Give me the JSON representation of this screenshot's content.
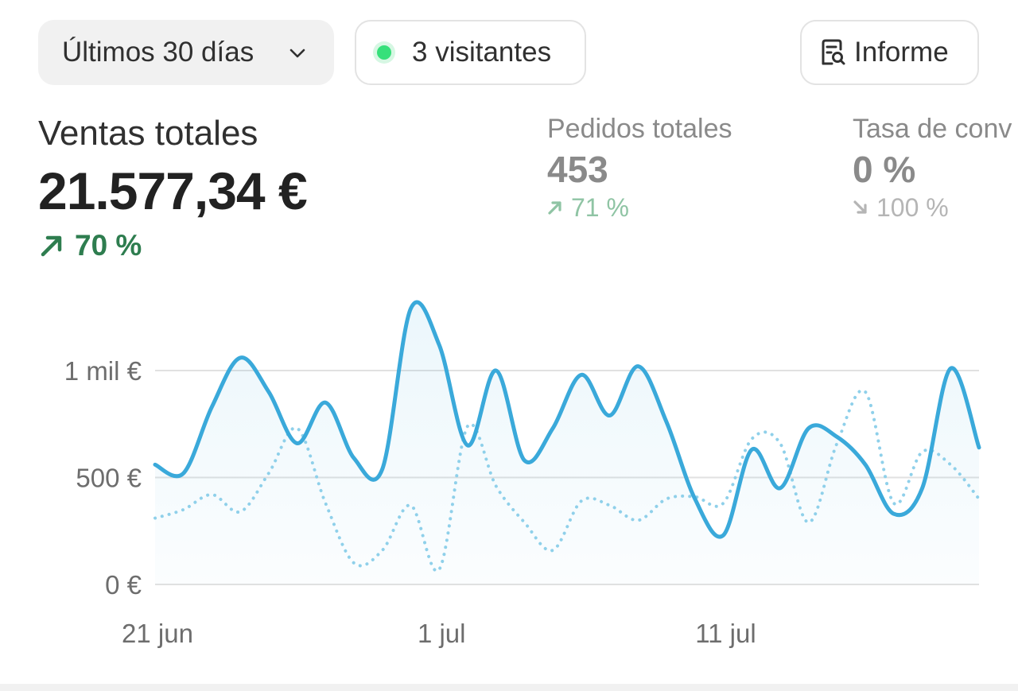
{
  "toolbar": {
    "range_label": "Últimos 30 días",
    "visitors_label": "3 visitantes",
    "report_label": "Informe",
    "live_dot_color": "#36e07a"
  },
  "metrics": {
    "total_sales": {
      "label": "Ventas totales",
      "value": "21.577,34 €",
      "change": "70 %",
      "trend": "up",
      "color": "#2e7d4f"
    },
    "total_orders": {
      "label": "Pedidos totales",
      "value": "453",
      "change": "71 %",
      "trend": "up"
    },
    "conversion_rate": {
      "label": "Tasa de conv",
      "value": "0 %",
      "change": "100 %",
      "trend": "down"
    }
  },
  "chart_data": {
    "type": "line",
    "x_ticks": [
      "21 jun",
      "1 jul",
      "11 jul"
    ],
    "y_ticks": [
      "0 €",
      "500 €",
      "1 mil €"
    ],
    "y_tick_values": [
      0,
      500,
      1000
    ],
    "ylim": [
      0,
      1300
    ],
    "grid": true,
    "legend": "none",
    "colors": {
      "current": "#3aa9da",
      "previous": "#8fd0ea"
    },
    "series": [
      {
        "style": "solid",
        "x": [
          0,
          1,
          2,
          3,
          4,
          5,
          6,
          7,
          8,
          9,
          10,
          11,
          12,
          13,
          14,
          15,
          16,
          17,
          18,
          19,
          20,
          21,
          22,
          23,
          24,
          25,
          26,
          27,
          28,
          29
        ],
        "values": [
          560,
          520,
          830,
          1060,
          900,
          660,
          850,
          590,
          540,
          1290,
          1120,
          650,
          1000,
          580,
          730,
          980,
          790,
          1020,
          760,
          400,
          230,
          630,
          450,
          730,
          690,
          560,
          330,
          450,
          1010,
          640
        ]
      },
      {
        "style": "dotted",
        "x": [
          0,
          1,
          2,
          3,
          4,
          5,
          6,
          7,
          8,
          9,
          10,
          11,
          12,
          13,
          14,
          15,
          16,
          17,
          18,
          19,
          20,
          21,
          22,
          23,
          24,
          25,
          26,
          27,
          28,
          29
        ],
        "values": [
          310,
          350,
          420,
          340,
          520,
          730,
          380,
          100,
          160,
          370,
          70,
          740,
          460,
          290,
          160,
          390,
          370,
          300,
          400,
          410,
          380,
          680,
          660,
          290,
          660,
          900,
          380,
          620,
          560,
          400
        ]
      }
    ]
  }
}
